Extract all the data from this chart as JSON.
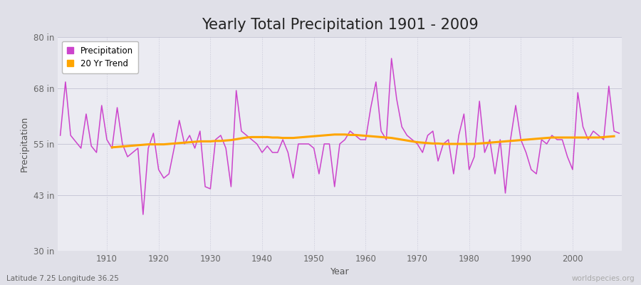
{
  "title": "Yearly Total Precipitation 1901 - 2009",
  "xlabel": "Year",
  "ylabel": "Precipitation",
  "subtitle": "Latitude 7.25 Longitude 36.25",
  "watermark": "worldspecies.org",
  "ylim": [
    30,
    80
  ],
  "yticks": [
    30,
    43,
    55,
    68,
    80
  ],
  "ytick_labels": [
    "30 in",
    "43 in",
    "55 in",
    "68 in",
    "80 in"
  ],
  "years": [
    1901,
    1902,
    1903,
    1904,
    1905,
    1906,
    1907,
    1908,
    1909,
    1910,
    1911,
    1912,
    1913,
    1914,
    1915,
    1916,
    1917,
    1918,
    1919,
    1920,
    1921,
    1922,
    1923,
    1924,
    1925,
    1926,
    1927,
    1928,
    1929,
    1930,
    1931,
    1932,
    1933,
    1934,
    1935,
    1936,
    1937,
    1938,
    1939,
    1940,
    1941,
    1942,
    1943,
    1944,
    1945,
    1946,
    1947,
    1948,
    1949,
    1950,
    1951,
    1952,
    1953,
    1954,
    1955,
    1956,
    1957,
    1958,
    1959,
    1960,
    1961,
    1962,
    1963,
    1964,
    1965,
    1966,
    1967,
    1968,
    1969,
    1970,
    1971,
    1972,
    1973,
    1974,
    1975,
    1976,
    1977,
    1978,
    1979,
    1980,
    1981,
    1982,
    1983,
    1984,
    1985,
    1986,
    1987,
    1988,
    1989,
    1990,
    1991,
    1992,
    1993,
    1994,
    1995,
    1996,
    1997,
    1998,
    1999,
    2000,
    2001,
    2002,
    2003,
    2004,
    2005,
    2006,
    2007,
    2008,
    2009
  ],
  "precip": [
    57.0,
    69.5,
    57.0,
    55.5,
    54.0,
    62.0,
    54.5,
    53.0,
    64.0,
    56.0,
    54.0,
    63.5,
    55.0,
    52.0,
    53.0,
    54.0,
    38.5,
    54.0,
    57.5,
    49.0,
    47.0,
    48.0,
    54.0,
    60.5,
    55.0,
    57.0,
    54.0,
    58.0,
    45.0,
    44.5,
    56.0,
    57.0,
    54.0,
    45.0,
    67.5,
    58.0,
    57.0,
    56.0,
    55.0,
    53.0,
    54.5,
    53.0,
    53.0,
    56.0,
    53.0,
    47.0,
    55.0,
    55.0,
    55.0,
    54.0,
    48.0,
    55.0,
    55.0,
    45.0,
    55.0,
    56.0,
    58.0,
    57.0,
    56.0,
    56.0,
    63.5,
    69.5,
    58.0,
    56.0,
    75.0,
    65.5,
    59.0,
    57.0,
    56.0,
    55.0,
    53.0,
    57.0,
    58.0,
    51.0,
    55.0,
    56.0,
    48.0,
    57.0,
    62.0,
    49.0,
    52.0,
    65.0,
    53.0,
    56.0,
    48.0,
    56.0,
    43.5,
    56.0,
    64.0,
    56.0,
    53.0,
    49.0,
    48.0,
    56.0,
    55.0,
    57.0,
    56.0,
    56.0,
    52.0,
    49.0,
    67.0,
    59.0,
    56.0,
    58.0,
    57.0,
    56.0,
    68.5,
    58.0,
    57.5
  ],
  "trend_years": [
    1911,
    1912,
    1913,
    1914,
    1915,
    1916,
    1917,
    1918,
    1919,
    1920,
    1921,
    1922,
    1923,
    1924,
    1925,
    1926,
    1927,
    1928,
    1929,
    1930,
    1931,
    1932,
    1933,
    1934,
    1935,
    1936,
    1937,
    1938,
    1939,
    1940,
    1941,
    1942,
    1943,
    1944,
    1945,
    1946,
    1947,
    1948,
    1949,
    1950,
    1951,
    1952,
    1953,
    1954,
    1955,
    1956,
    1957,
    1958,
    1959,
    1960,
    1961,
    1962,
    1963,
    1964,
    1965,
    1966,
    1967,
    1968,
    1969,
    1970,
    1971,
    1972,
    1973,
    1974,
    1975,
    1976,
    1977,
    1978,
    1979,
    1980,
    1981,
    1982,
    1983,
    1984,
    1985,
    1986,
    1987,
    1988,
    1989,
    1990,
    1991,
    1992,
    1993,
    1994,
    1995,
    1996,
    1997,
    1998,
    1999,
    2000,
    2001,
    2002,
    2003,
    2004,
    2005,
    2006,
    2007,
    2008
  ],
  "trend": [
    54.2,
    54.3,
    54.4,
    54.5,
    54.6,
    54.7,
    54.8,
    54.9,
    54.9,
    54.9,
    54.9,
    55.0,
    55.1,
    55.2,
    55.3,
    55.4,
    55.5,
    55.6,
    55.6,
    55.6,
    55.7,
    55.7,
    55.8,
    55.9,
    56.1,
    56.3,
    56.5,
    56.6,
    56.6,
    56.6,
    56.6,
    56.5,
    56.5,
    56.4,
    56.4,
    56.4,
    56.5,
    56.6,
    56.7,
    56.8,
    56.9,
    57.0,
    57.1,
    57.2,
    57.2,
    57.2,
    57.1,
    57.1,
    57.0,
    56.9,
    56.8,
    56.7,
    56.6,
    56.5,
    56.4,
    56.2,
    56.0,
    55.8,
    55.6,
    55.4,
    55.3,
    55.2,
    55.1,
    55.1,
    55.0,
    55.0,
    55.0,
    55.0,
    55.0,
    55.0,
    55.0,
    55.1,
    55.2,
    55.3,
    55.4,
    55.5,
    55.6,
    55.7,
    55.8,
    55.9,
    56.0,
    56.1,
    56.2,
    56.3,
    56.4,
    56.5,
    56.5,
    56.5,
    56.5,
    56.5,
    56.5,
    56.5,
    56.5,
    56.5,
    56.5,
    56.6,
    56.7,
    56.8
  ],
  "precip_color": "#CC44CC",
  "trend_color": "#FFA500",
  "bg_color": "#E0E0E8",
  "plot_bg_color": "#EBEBF2",
  "grid_color": "#C8C8D8",
  "title_fontsize": 15,
  "axis_label_fontsize": 9,
  "tick_fontsize": 8.5,
  "legend_fontsize": 8.5
}
